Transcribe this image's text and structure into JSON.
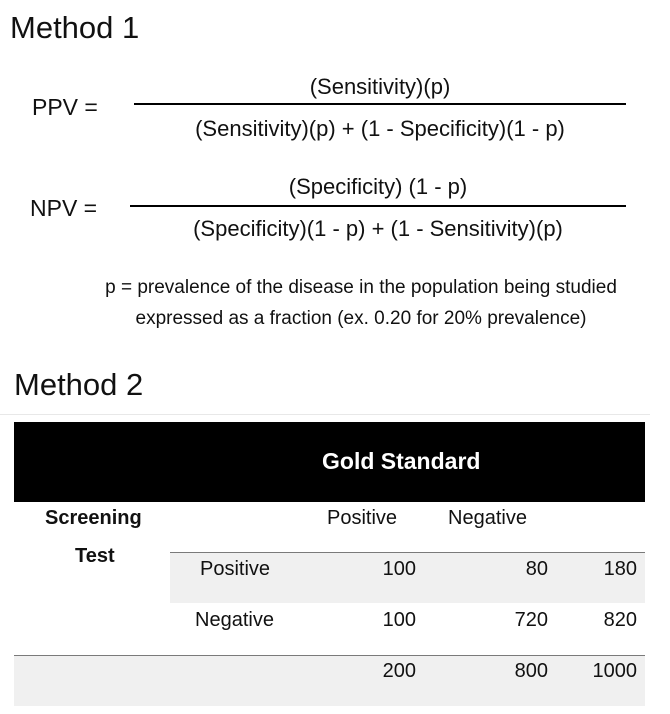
{
  "method1": {
    "title": "Method 1",
    "ppv": {
      "label": "PPV =",
      "numerator": "(Sensitivity)(p)",
      "denominator": "(Sensitivity)(p) + (1 - Specificity)(1 - p)"
    },
    "npv": {
      "label": "NPV =",
      "numerator": "(Specificity) (1 - p)",
      "denominator": "(Specificity)(1 - p) + (1 - Sensitivity)(p)"
    },
    "note_line1": "p = prevalence of the disease in the population being studied",
    "note_line2": "expressed as a fraction (ex. 0.20 for 20% prevalence)"
  },
  "method2": {
    "title": "Method 2",
    "table": {
      "header": "Gold Standard",
      "row_header_line1": "Screening",
      "row_header_line2": "Test",
      "columns": [
        "Positive",
        "Negative"
      ],
      "rows": [
        {
          "label": "Positive",
          "values": [
            "100",
            "80",
            "180"
          ]
        },
        {
          "label": "Negative",
          "values": [
            "100",
            "720",
            "820"
          ]
        },
        {
          "label": "",
          "values": [
            "200",
            "800",
            "1000"
          ]
        }
      ]
    }
  },
  "colors": {
    "header_bg": "#000000",
    "header_text": "#ffffff",
    "row_shade": "#f0f0f0",
    "rule": "#7a7a7a"
  }
}
